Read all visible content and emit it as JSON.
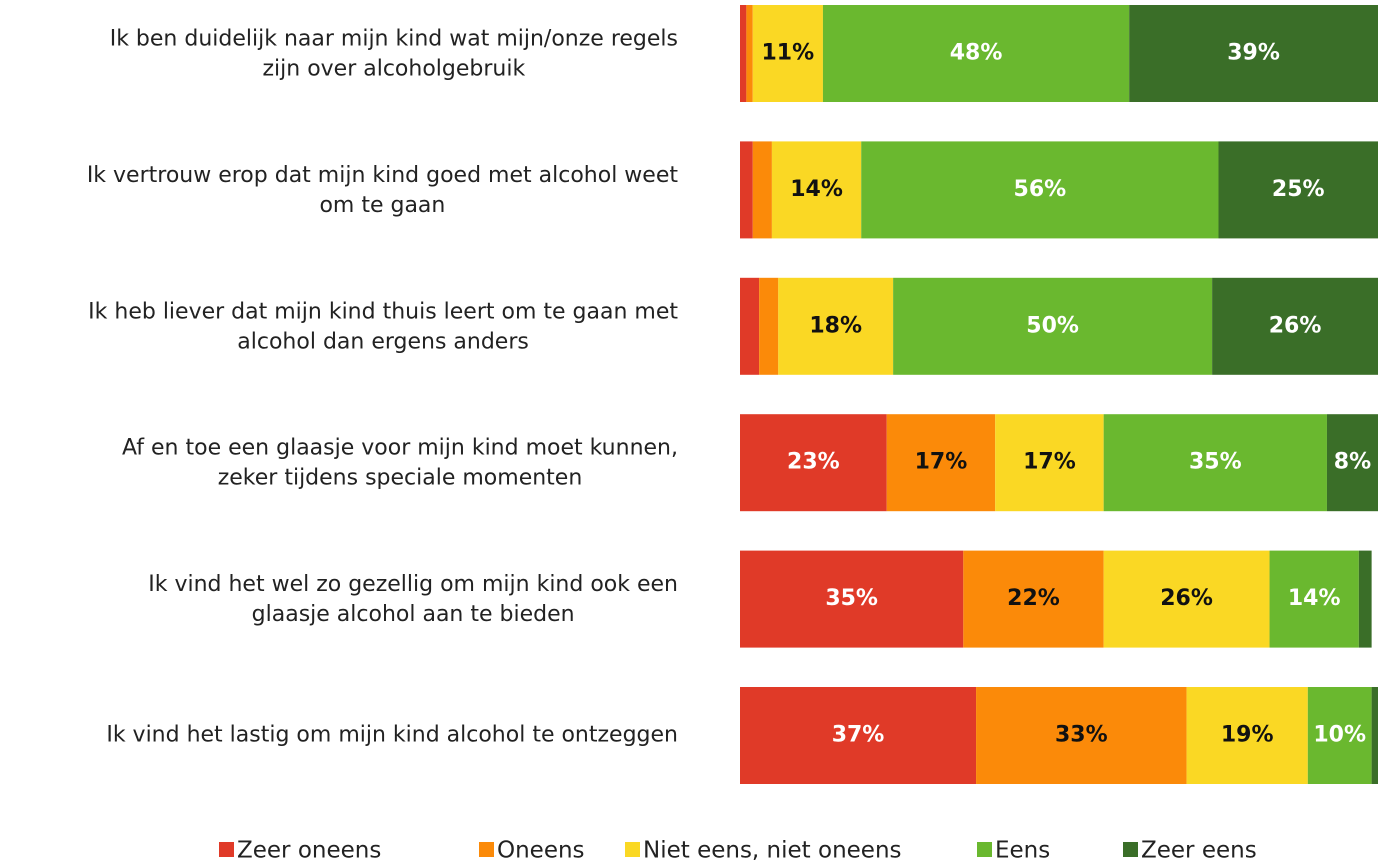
{
  "chart_data": {
    "type": "stacked-bar-horizontal",
    "categories": [
      [
        "Ik ben duidelijk naar mijn kind wat mijn/onze regels",
        "zijn over alcoholgebruik"
      ],
      [
        "Ik vertrouw erop dat mijn kind goed met alcohol weet",
        "om te gaan"
      ],
      [
        "Ik heb liever dat mijn kind thuis leert om te gaan met",
        "alcohol dan ergens anders"
      ],
      [
        "Af en toe een glaasje voor mijn kind moet kunnen,",
        "zeker tijdens speciale momenten"
      ],
      [
        "Ik vind het wel zo gezellig om mijn kind ook een",
        "glaasje alcohol aan te bieden"
      ],
      [
        "Ik vind het lastig om mijn kind alcohol te ontzeggen"
      ]
    ],
    "series": [
      {
        "name": "Zeer oneens",
        "color": "#e03a28",
        "values": [
          1,
          2,
          3,
          23,
          35,
          37
        ],
        "value_labels": [
          null,
          null,
          null,
          "23%",
          "35%",
          "37%"
        ]
      },
      {
        "name": "Oneens",
        "color": "#fb8a09",
        "values": [
          1,
          3,
          3,
          17,
          22,
          33
        ],
        "value_labels": [
          null,
          null,
          null,
          "17%",
          "22%",
          "33%"
        ]
      },
      {
        "name": "Niet eens, niet oneens",
        "color": "#fad824",
        "values": [
          11,
          14,
          18,
          17,
          26,
          19
        ],
        "value_labels": [
          "11%",
          "14%",
          "18%",
          "17%",
          "26%",
          "19%"
        ]
      },
      {
        "name": "Eens",
        "color": "#6ab82f",
        "values": [
          48,
          56,
          50,
          35,
          14,
          10
        ],
        "value_labels": [
          "48%",
          "56%",
          "50%",
          "35%",
          "14%",
          "10%"
        ]
      },
      {
        "name": "Zeer eens",
        "color": "#3a6e28",
        "values": [
          39,
          25,
          26,
          8,
          2,
          1
        ],
        "value_labels": [
          "39%",
          "25%",
          "26%",
          "8%",
          null,
          null
        ]
      }
    ],
    "xlim": [
      0,
      100
    ],
    "legend": "bottom"
  }
}
